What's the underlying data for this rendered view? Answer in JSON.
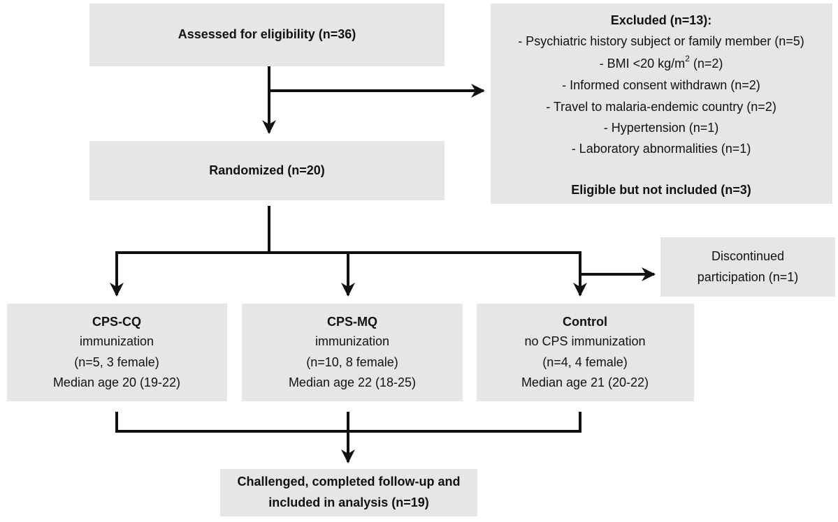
{
  "assessed": {
    "label": "Assessed for eligibility (n=36)"
  },
  "excluded": {
    "title": "Excluded (n=13):",
    "items": [
      "- Psychiatric history subject or family member (n=5)",
      {
        "text": "- BMI <20 kg/m",
        "sup": "2",
        "after": "(n=2)"
      },
      "- Informed consent withdrawn (n=2)",
      "- Travel to malaria-endemic country (n=2)",
      "- Hypertension (n=1)",
      "- Laboratory abnormalities (n=1)"
    ],
    "footer": "Eligible but not included (n=3)"
  },
  "randomized": {
    "label": "Randomized (n=20)"
  },
  "discontinued": {
    "lines": [
      "Discontinued",
      "participation (n=1)"
    ]
  },
  "arms": [
    {
      "title": "CPS-CQ",
      "lines": [
        "immunization",
        "(n=5, 3 female)",
        "Median age 20 (19-22)"
      ]
    },
    {
      "title": "CPS-MQ",
      "lines": [
        "immunization",
        "(n=10, 8 female)",
        "Median age 22 (18-25)"
      ]
    },
    {
      "title": "Control",
      "lines": [
        "no CPS immunization",
        "(n=4, 4 female)",
        "Median age 21 (20-22)"
      ]
    }
  ],
  "final": {
    "lines": [
      "Challenged, completed follow-up and",
      "included in analysis (n=19)"
    ]
  }
}
